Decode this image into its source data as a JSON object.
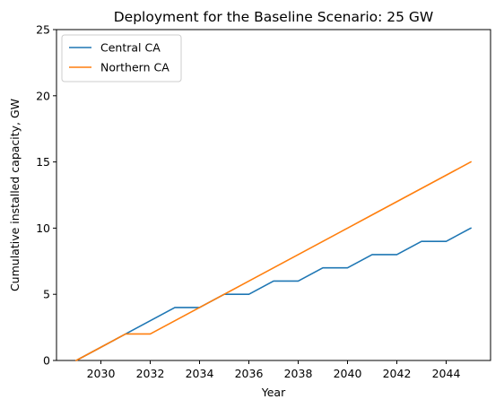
{
  "chart_data": {
    "type": "line",
    "title": "Deployment for the Baseline Scenario: 25 GW",
    "xlabel": "Year",
    "ylabel": "Cumulative installed capacity, GW",
    "xlim": [
      2028.2,
      2045.8
    ],
    "ylim": [
      0,
      25
    ],
    "xticks": [
      2030,
      2032,
      2034,
      2036,
      2038,
      2040,
      2042,
      2044
    ],
    "yticks": [
      0,
      5,
      10,
      15,
      20,
      25
    ],
    "grid": false,
    "legend_position": "top-left",
    "x": [
      2029,
      2030,
      2031,
      2032,
      2033,
      2034,
      2035,
      2036,
      2037,
      2038,
      2039,
      2040,
      2041,
      2042,
      2043,
      2044,
      2045
    ],
    "series": [
      {
        "name": "Central CA",
        "color": "#1f77b4",
        "values": [
          0,
          1,
          2,
          3,
          4,
          4,
          5,
          5,
          6,
          6,
          7,
          7,
          8,
          8,
          9,
          9,
          10
        ]
      },
      {
        "name": "Northern CA",
        "color": "#ff7f0e",
        "values": [
          0,
          1,
          2,
          2,
          3,
          4,
          5,
          6,
          7,
          8,
          9,
          10,
          11,
          12,
          13,
          14,
          15
        ]
      }
    ]
  }
}
